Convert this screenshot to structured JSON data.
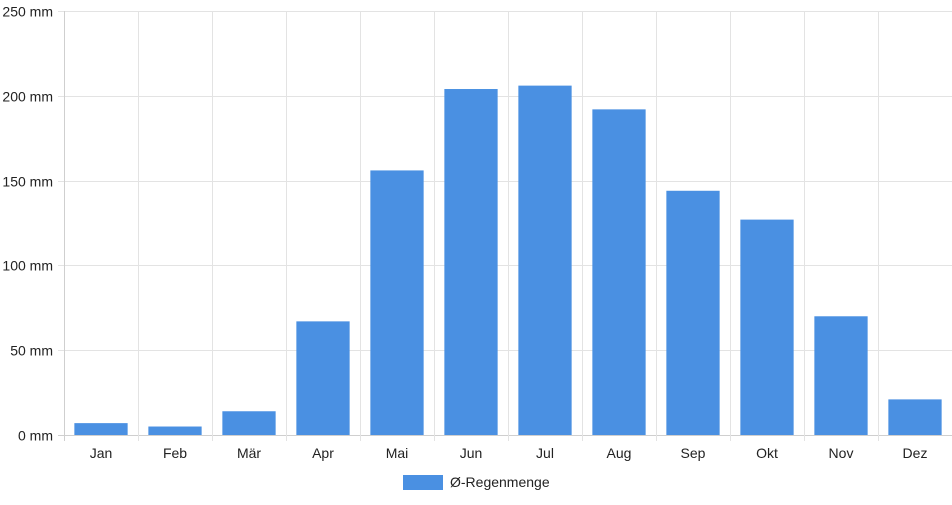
{
  "chart_data": {
    "type": "bar",
    "categories": [
      "Jan",
      "Feb",
      "Mär",
      "Apr",
      "Mai",
      "Jun",
      "Jul",
      "Aug",
      "Sep",
      "Okt",
      "Nov",
      "Dez"
    ],
    "series": [
      {
        "name": "Ø-Regenmenge",
        "color": "#4a90e2",
        "values": [
          7,
          5,
          14,
          67,
          156,
          204,
          206,
          192,
          144,
          127,
          70,
          21
        ]
      }
    ],
    "y_ticks": [
      "0 mm",
      "50 mm",
      "100 mm",
      "150 mm",
      "200 mm",
      "250 mm"
    ],
    "ylim": [
      0,
      250
    ],
    "grid": true,
    "legend_position": "bottom-center"
  }
}
